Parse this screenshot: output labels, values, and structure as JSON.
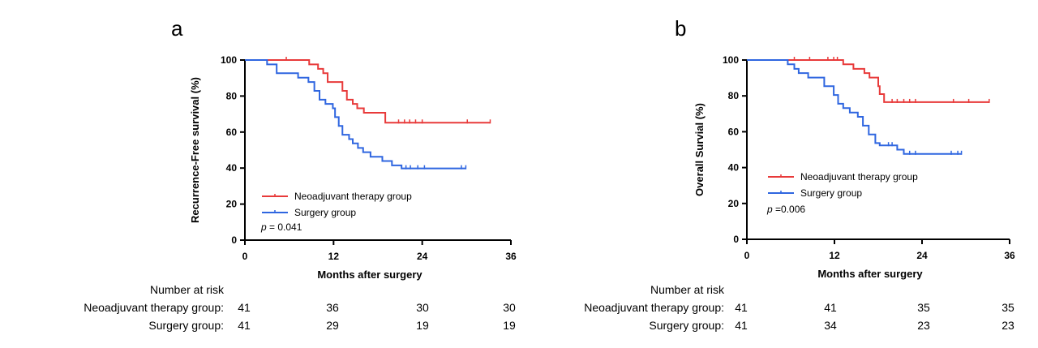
{
  "colors": {
    "neo": "#e83a3a",
    "surgery": "#2f66e0",
    "axis": "#000000"
  },
  "risk_table": {
    "header": "Number at risk",
    "groups": [
      "Neoadjuvant therapy group:",
      "Surgery group:"
    ]
  },
  "chart_data": [
    {
      "panel": "a",
      "type": "line",
      "subtype": "kaplan-meier",
      "ylabel": "Recurrence-Free survival (%)",
      "xlabel": "Months after surgery",
      "xticks": [
        0,
        12,
        24,
        36
      ],
      "yticks": [
        0,
        20,
        40,
        60,
        80,
        100
      ],
      "xlim": [
        0,
        36
      ],
      "ylim": [
        0,
        100
      ],
      "pvalue_prefix": "p",
      "pvalue_text": " = 0.041",
      "legend_position": "bottom-left",
      "series": [
        {
          "name": "Neoadjuvant therapy group",
          "color": "#e83a3a",
          "steps": [
            [
              0,
              100
            ],
            [
              8.7,
              97.6
            ],
            [
              9.9,
              95.1
            ],
            [
              10.6,
              92.7
            ],
            [
              11.2,
              87.8
            ],
            [
              13.2,
              82.9
            ],
            [
              13.8,
              78.0
            ],
            [
              14.6,
              75.6
            ],
            [
              15.2,
              73.2
            ],
            [
              16.1,
              70.7
            ],
            [
              19.0,
              65.2
            ],
            [
              33.2,
              65.2
            ]
          ],
          "censor": [
            5.6,
            20.8,
            21.6,
            22.3,
            23.1,
            24.0,
            30.1,
            33.2
          ],
          "risk": [
            41,
            36,
            30,
            30
          ]
        },
        {
          "name": "Surgery group",
          "color": "#2f66e0",
          "steps": [
            [
              0,
              100
            ],
            [
              3.0,
              97.6
            ],
            [
              4.3,
              92.7
            ],
            [
              7.2,
              90.2
            ],
            [
              8.6,
              87.8
            ],
            [
              9.4,
              82.9
            ],
            [
              10.1,
              78.0
            ],
            [
              10.9,
              75.6
            ],
            [
              11.9,
              73.2
            ],
            [
              12.2,
              68.3
            ],
            [
              12.7,
              63.4
            ],
            [
              13.2,
              58.5
            ],
            [
              14.1,
              56.1
            ],
            [
              14.6,
              53.7
            ],
            [
              15.3,
              51.2
            ],
            [
              16.0,
              48.8
            ],
            [
              17.0,
              46.3
            ],
            [
              18.6,
              43.9
            ],
            [
              19.9,
              41.5
            ],
            [
              21.2,
              39.8
            ],
            [
              29.9,
              39.8
            ]
          ],
          "censor": [
            21.8,
            22.4,
            23.4,
            24.3,
            29.3,
            29.9
          ],
          "risk": [
            41,
            29,
            19,
            19
          ]
        }
      ]
    },
    {
      "panel": "b",
      "type": "line",
      "subtype": "kaplan-meier",
      "ylabel": "Overall Survial (%)",
      "xlabel": "Months after surgery",
      "xticks": [
        0,
        12,
        24,
        36
      ],
      "yticks": [
        0,
        20,
        40,
        60,
        80,
        100
      ],
      "xlim": [
        0,
        36
      ],
      "ylim": [
        0,
        100
      ],
      "pvalue_prefix": "p",
      "pvalue_text": " =0.006",
      "legend_position": "middle-left",
      "series": [
        {
          "name": "Neoadjuvant therapy group",
          "color": "#e83a3a",
          "steps": [
            [
              0,
              100
            ],
            [
              13.2,
              97.6
            ],
            [
              14.6,
              95.1
            ],
            [
              16.1,
              92.7
            ],
            [
              16.8,
              90.2
            ],
            [
              18.0,
              85.4
            ],
            [
              18.2,
              81.0
            ],
            [
              18.8,
              76.5
            ],
            [
              33.2,
              76.5
            ]
          ],
          "censor": [
            6.5,
            8.6,
            11.1,
            11.9,
            12.4,
            19.9,
            20.6,
            21.5,
            22.3,
            23.1,
            28.3,
            30.4,
            33.2
          ],
          "risk": [
            41,
            41,
            35,
            35
          ]
        },
        {
          "name": "Surgery group",
          "color": "#2f66e0",
          "steps": [
            [
              0,
              100
            ],
            [
              5.6,
              97.6
            ],
            [
              6.5,
              95.1
            ],
            [
              7.1,
              92.7
            ],
            [
              8.4,
              90.2
            ],
            [
              10.6,
              85.4
            ],
            [
              11.9,
              80.5
            ],
            [
              12.5,
              75.6
            ],
            [
              13.2,
              73.2
            ],
            [
              14.1,
              70.7
            ],
            [
              15.2,
              68.3
            ],
            [
              15.9,
              63.4
            ],
            [
              16.7,
              58.5
            ],
            [
              17.6,
              53.7
            ],
            [
              18.2,
              52.4
            ],
            [
              20.6,
              50.0
            ],
            [
              21.5,
              47.6
            ],
            [
              29.4,
              47.6
            ]
          ],
          "censor": [
            19.4,
            19.9,
            22.3,
            23.1,
            28.0,
            28.9,
            29.4
          ],
          "risk": [
            41,
            34,
            23,
            23
          ]
        }
      ]
    }
  ]
}
